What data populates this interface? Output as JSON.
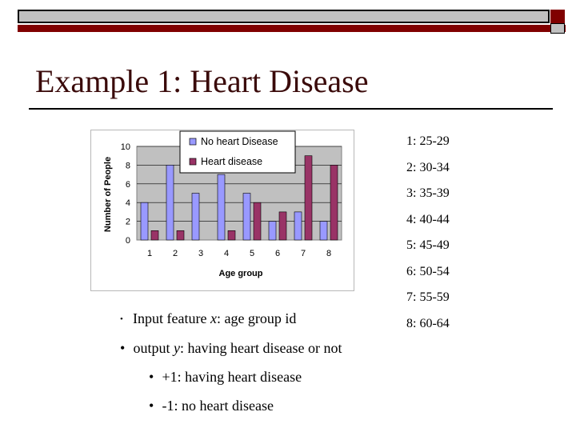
{
  "slide": {
    "title": "Example 1: Heart Disease"
  },
  "age_groups": [
    "1: 25-29",
    "2: 30-34",
    "3: 35-39",
    "4: 40-44",
    "5: 45-49",
    "6: 50-54",
    "7: 55-59",
    "8: 60-64"
  ],
  "bullets": {
    "b1_prefix": "Input feature ",
    "b1_var": "x",
    "b1_suffix": ": age group id",
    "b2_prefix": "output ",
    "b2_var": "y",
    "b2_suffix": ": having heart disease or not",
    "b3": "+1: having heart disease",
    "b4": "-1: no heart disease"
  },
  "chart_data": {
    "type": "bar",
    "categories": [
      "1",
      "2",
      "3",
      "4",
      "5",
      "6",
      "7",
      "8"
    ],
    "series": [
      {
        "name": "No heart Disease",
        "color": "#9999ff",
        "values": [
          4,
          8,
          5,
          7,
          5,
          2,
          3,
          2
        ]
      },
      {
        "name": "Heart disease",
        "color": "#993366",
        "values": [
          1,
          1,
          0,
          1,
          4,
          3,
          9,
          8
        ]
      }
    ],
    "xlabel": "Age group",
    "ylabel": "Number of People",
    "yticks": [
      0,
      2,
      4,
      6,
      8,
      10
    ],
    "ylim": [
      0,
      10
    ],
    "grid": true,
    "legend": "top"
  }
}
